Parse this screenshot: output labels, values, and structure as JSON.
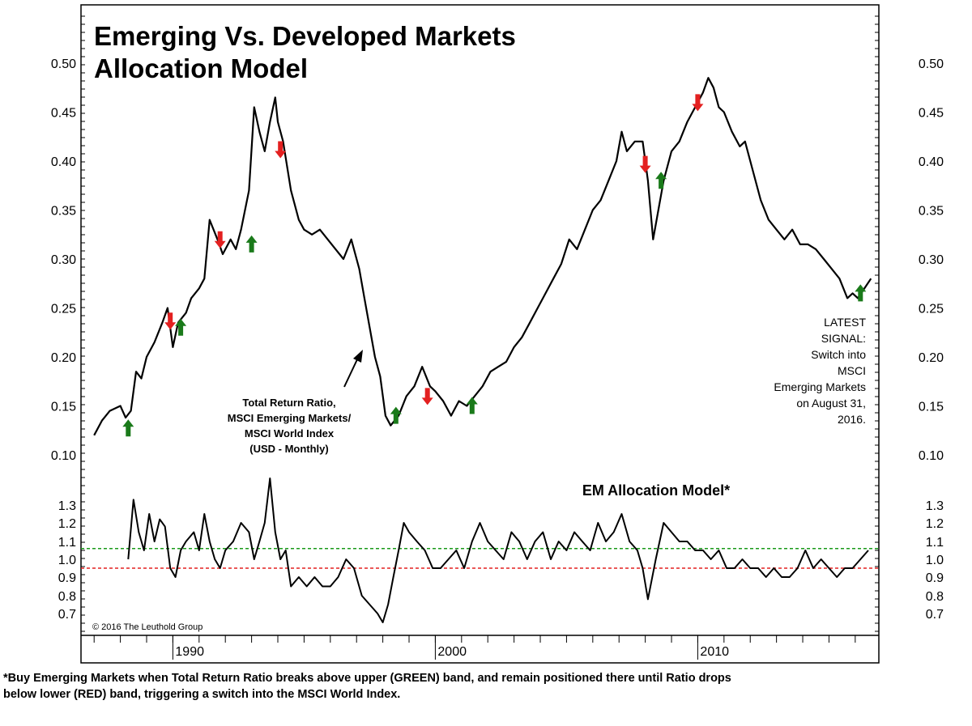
{
  "title_line1": "Emerging Vs. Developed Markets",
  "title_line2": "Allocation Model",
  "annotation": [
    "Total Return Ratio,",
    "MSCI Emerging Markets/",
    "MSCI World Index",
    "(USD - Monthly)"
  ],
  "latest_signal": [
    "LATEST",
    "SIGNAL:",
    "Switch into",
    "MSCI",
    "Emerging Markets",
    "on August 31,",
    "2016."
  ],
  "copyright": "© 2016 The Leuthold Group",
  "footnote_line1": "*Buy Emerging Markets when Total Return Ratio breaks above upper (GREEN) band, and remain positioned there until Ratio drops",
  "footnote_line2": "below lower (RED) band, triggering a switch into the MSCI World Index.",
  "colors": {
    "line": "#000000",
    "buy_arrow": "#1a7a1a",
    "sell_arrow": "#e32020",
    "upper_band": "#1a9a1a",
    "lower_band": "#e32020"
  },
  "chart_data": [
    {
      "type": "line",
      "title": "",
      "xlabel": "",
      "ylabel": "",
      "x_ticks": [
        "1990",
        "2000",
        "2010"
      ],
      "xlim": [
        1986.5,
        2016.9
      ],
      "ylim": [
        0.1,
        0.5
      ],
      "y_ticks": [
        "0.50",
        "0.45",
        "0.40",
        "0.35",
        "0.30",
        "0.25",
        "0.20",
        "0.15",
        "0.10"
      ],
      "series": [
        {
          "x": [
            1987.0,
            1987.3,
            1987.6,
            1988.0,
            1988.2,
            1988.4,
            1988.6,
            1988.8,
            1989.0,
            1989.3,
            1989.6,
            1989.8,
            1990.0,
            1990.2,
            1990.5,
            1990.7,
            1991.0,
            1991.2,
            1991.4,
            1991.7,
            1991.9,
            1992.2,
            1992.4,
            1992.6,
            1992.9,
            1993.1,
            1993.3,
            1993.5,
            1993.7,
            1993.9,
            1994.0,
            1994.2,
            1994.5,
            1994.8,
            1995.0,
            1995.3,
            1995.6,
            1995.9,
            1996.2,
            1996.5,
            1996.8,
            1997.1,
            1997.3,
            1997.5,
            1997.7,
            1997.9,
            1998.1,
            1998.3,
            1998.6,
            1998.9,
            1999.2,
            1999.5,
            1999.8,
            2000.0,
            2000.3,
            2000.6,
            2000.9,
            2001.2,
            2001.5,
            2001.8,
            2002.1,
            2002.4,
            2002.7,
            2003.0,
            2003.3,
            2003.6,
            2003.9,
            2004.2,
            2004.5,
            2004.8,
            2005.1,
            2005.4,
            2005.7,
            2006.0,
            2006.3,
            2006.6,
            2006.9,
            2007.1,
            2007.3,
            2007.6,
            2007.9,
            2008.1,
            2008.3,
            2008.5,
            2008.7,
            2009.0,
            2009.3,
            2009.6,
            2009.9,
            2010.2,
            2010.4,
            2010.6,
            2010.8,
            2011.0,
            2011.3,
            2011.6,
            2011.8,
            2012.1,
            2012.4,
            2012.7,
            2013.0,
            2013.3,
            2013.6,
            2013.9,
            2014.2,
            2014.5,
            2014.8,
            2015.1,
            2015.4,
            2015.7,
            2015.9,
            2016.1,
            2016.4,
            2016.6
          ],
          "y": [
            0.12,
            0.135,
            0.145,
            0.15,
            0.138,
            0.145,
            0.185,
            0.178,
            0.2,
            0.215,
            0.235,
            0.25,
            0.21,
            0.235,
            0.245,
            0.26,
            0.27,
            0.28,
            0.34,
            0.32,
            0.305,
            0.32,
            0.31,
            0.33,
            0.37,
            0.455,
            0.43,
            0.41,
            0.44,
            0.465,
            0.44,
            0.42,
            0.37,
            0.34,
            0.33,
            0.325,
            0.33,
            0.32,
            0.31,
            0.3,
            0.32,
            0.29,
            0.26,
            0.23,
            0.2,
            0.18,
            0.14,
            0.13,
            0.14,
            0.16,
            0.17,
            0.19,
            0.17,
            0.165,
            0.155,
            0.14,
            0.155,
            0.15,
            0.16,
            0.17,
            0.185,
            0.19,
            0.195,
            0.21,
            0.22,
            0.235,
            0.25,
            0.265,
            0.28,
            0.295,
            0.32,
            0.31,
            0.33,
            0.35,
            0.36,
            0.38,
            0.4,
            0.43,
            0.41,
            0.42,
            0.42,
            0.38,
            0.32,
            0.35,
            0.38,
            0.41,
            0.42,
            0.44,
            0.455,
            0.47,
            0.485,
            0.475,
            0.455,
            0.45,
            0.43,
            0.415,
            0.42,
            0.39,
            0.36,
            0.34,
            0.33,
            0.32,
            0.33,
            0.315,
            0.315,
            0.31,
            0.3,
            0.29,
            0.28,
            0.26,
            0.265,
            0.26,
            0.272,
            0.28
          ]
        }
      ],
      "buy_signals": [
        [
          1988.3,
          0.127
        ],
        [
          1990.3,
          0.23
        ],
        [
          1993.0,
          0.315
        ],
        [
          1998.5,
          0.14
        ],
        [
          2001.4,
          0.15
        ],
        [
          2008.6,
          0.38
        ],
        [
          2016.2,
          0.265
        ]
      ],
      "sell_signals": [
        [
          1989.9,
          0.237
        ],
        [
          1991.8,
          0.32
        ],
        [
          1994.1,
          0.412
        ],
        [
          1999.7,
          0.16
        ],
        [
          2008.0,
          0.397
        ],
        [
          2010.0,
          0.46
        ]
      ]
    },
    {
      "type": "line",
      "title": "EM Allocation Model*",
      "xlabel": "",
      "ylabel": "",
      "ylim": [
        0.6,
        1.45
      ],
      "y_ticks": [
        "1.3",
        "1.2",
        "1.1",
        "1.0",
        "0.9",
        "0.8",
        "0.7"
      ],
      "bands": {
        "upper": 1.06,
        "lower": 0.95
      },
      "series": [
        {
          "x": [
            1988.3,
            1988.5,
            1988.7,
            1988.9,
            1989.1,
            1989.3,
            1989.5,
            1989.7,
            1989.9,
            1990.1,
            1990.3,
            1990.5,
            1990.8,
            1991.0,
            1991.2,
            1991.4,
            1991.6,
            1991.8,
            1992.0,
            1992.3,
            1992.6,
            1992.9,
            1993.1,
            1993.3,
            1993.5,
            1993.7,
            1993.9,
            1994.1,
            1994.3,
            1994.5,
            1994.8,
            1995.1,
            1995.4,
            1995.7,
            1996.0,
            1996.3,
            1996.6,
            1996.9,
            1997.2,
            1997.5,
            1997.8,
            1998.0,
            1998.2,
            1998.4,
            1998.6,
            1998.8,
            1999.0,
            1999.3,
            1999.6,
            1999.9,
            2000.2,
            2000.5,
            2000.8,
            2001.1,
            2001.4,
            2001.7,
            2002.0,
            2002.3,
            2002.6,
            2002.9,
            2003.2,
            2003.5,
            2003.8,
            2004.1,
            2004.4,
            2004.7,
            2005.0,
            2005.3,
            2005.6,
            2005.9,
            2006.2,
            2006.5,
            2006.8,
            2007.1,
            2007.4,
            2007.7,
            2007.9,
            2008.1,
            2008.4,
            2008.7,
            2009.0,
            2009.3,
            2009.6,
            2009.9,
            2010.2,
            2010.5,
            2010.8,
            2011.1,
            2011.4,
            2011.7,
            2012.0,
            2012.3,
            2012.6,
            2012.9,
            2013.2,
            2013.5,
            2013.8,
            2014.1,
            2014.4,
            2014.7,
            2015.0,
            2015.3,
            2015.6,
            2015.9,
            2016.2,
            2016.5
          ],
          "y": [
            1.0,
            1.33,
            1.15,
            1.05,
            1.25,
            1.1,
            1.22,
            1.18,
            0.95,
            0.9,
            1.05,
            1.1,
            1.15,
            1.05,
            1.25,
            1.1,
            1.0,
            0.95,
            1.05,
            1.1,
            1.2,
            1.15,
            1.0,
            1.1,
            1.2,
            1.45,
            1.15,
            1.0,
            1.05,
            0.85,
            0.9,
            0.85,
            0.9,
            0.85,
            0.85,
            0.9,
            1.0,
            0.95,
            0.8,
            0.75,
            0.7,
            0.65,
            0.75,
            0.9,
            1.05,
            1.2,
            1.15,
            1.1,
            1.05,
            0.95,
            0.95,
            1.0,
            1.05,
            0.95,
            1.1,
            1.2,
            1.1,
            1.05,
            1.0,
            1.15,
            1.1,
            1.0,
            1.1,
            1.15,
            1.0,
            1.1,
            1.05,
            1.15,
            1.1,
            1.05,
            1.2,
            1.1,
            1.15,
            1.25,
            1.1,
            1.05,
            0.95,
            0.78,
            1.0,
            1.2,
            1.15,
            1.1,
            1.1,
            1.05,
            1.05,
            1.0,
            1.05,
            0.95,
            0.95,
            1.0,
            0.95,
            0.95,
            0.9,
            0.95,
            0.9,
            0.9,
            0.95,
            1.05,
            0.95,
            1.0,
            0.95,
            0.9,
            0.95,
            0.95,
            1.0,
            1.05
          ]
        }
      ]
    }
  ]
}
